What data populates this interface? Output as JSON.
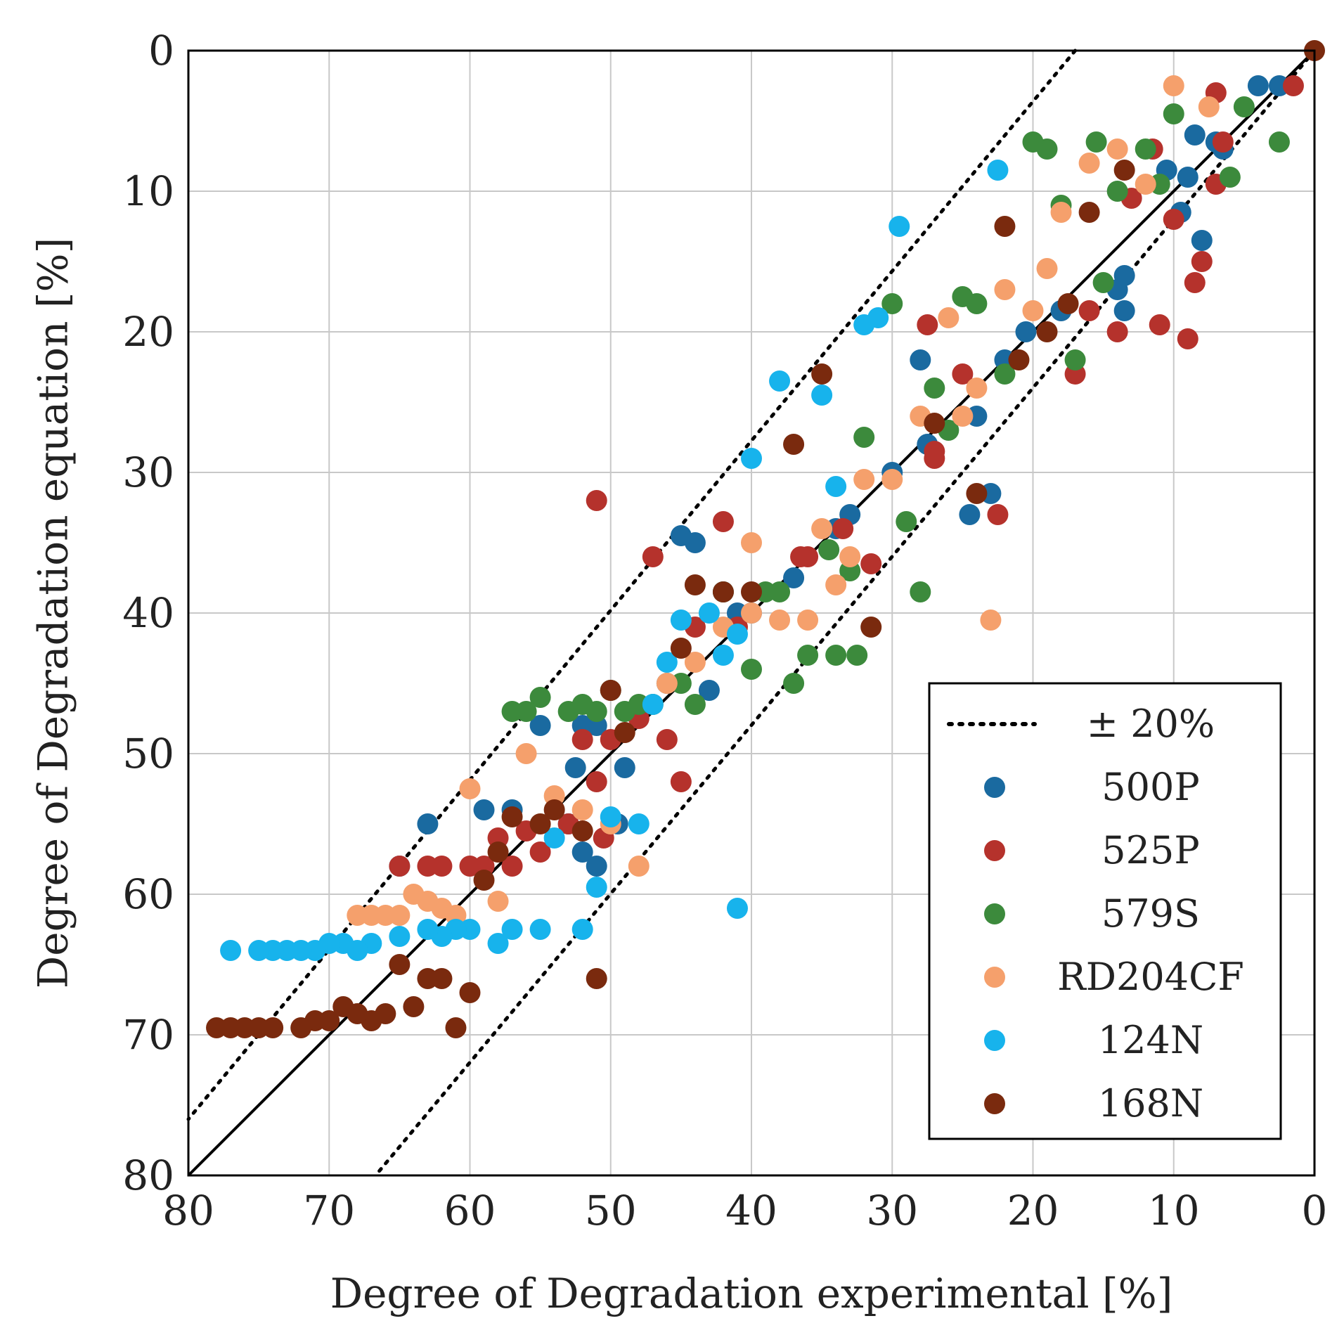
{
  "chart_data": {
    "type": "scatter",
    "title": "",
    "xlabel": "Degree of Degradation experimental [%]",
    "ylabel": "Degree of Degradation equation [%]",
    "xlim": [
      80,
      0
    ],
    "ylim": [
      80,
      0
    ],
    "x_reversed": true,
    "y_reversed": true,
    "xticks": [
      80,
      70,
      60,
      50,
      40,
      30,
      20,
      10,
      0
    ],
    "yticks": [
      0,
      10,
      20,
      30,
      40,
      50,
      60,
      70,
      80
    ],
    "grid": true,
    "legend_position": "bottom-right",
    "reference_lines": [
      {
        "name": "identity",
        "style": "solid",
        "color": "#000000",
        "points": [
          [
            0,
            0
          ],
          [
            80,
            80
          ]
        ]
      },
      {
        "name": "± 20%",
        "style": "dotted",
        "color": "#000000",
        "points": [
          [
            0,
            0
          ],
          [
            66.7,
            80
          ]
        ],
        "label": "± 20%"
      },
      {
        "name": "± 20% upper",
        "style": "dotted",
        "color": "#000000",
        "points": [
          [
            17,
            0
          ],
          [
            80,
            76
          ]
        ]
      }
    ],
    "legend": [
      {
        "label": "± 20%",
        "kind": "dotted-line"
      },
      {
        "label": "500P",
        "kind": "marker",
        "color": "#1a6aa0"
      },
      {
        "label": "525P",
        "kind": "marker",
        "color": "#b5322c"
      },
      {
        "label": "579S",
        "kind": "marker",
        "color": "#3c8a3c"
      },
      {
        "label": "RD204CF",
        "kind": "marker",
        "color": "#f5a06c"
      },
      {
        "label": "124N",
        "kind": "marker",
        "color": "#17b3ec"
      },
      {
        "label": "168N",
        "kind": "marker",
        "color": "#7a2a0e"
      }
    ],
    "series": [
      {
        "name": "500P",
        "color": "#1a6aa0",
        "x": [
          4,
          2.5,
          8.5,
          9,
          10.5,
          9.5,
          8,
          7,
          6.5,
          13.5,
          14,
          13.5,
          18,
          20.5,
          22,
          24,
          24.5,
          23,
          27.5,
          28,
          30,
          33,
          34,
          37,
          40,
          42,
          43,
          41,
          44,
          45,
          46,
          49,
          49.5,
          51,
          52,
          52.5,
          53,
          52,
          51,
          55,
          57,
          59,
          63,
          65
        ],
        "y": [
          2.5,
          2.5,
          6,
          9,
          8.5,
          11.5,
          13.5,
          6.5,
          7,
          16,
          17,
          18.5,
          18.5,
          20,
          22,
          26,
          33,
          31.5,
          28,
          22,
          30,
          33,
          34,
          37.5,
          40,
          38.5,
          45.5,
          40,
          35,
          34.5,
          45,
          51,
          55,
          48,
          48,
          51,
          55,
          57,
          58,
          48,
          54,
          54,
          55,
          58
        ]
      },
      {
        "name": "525P",
        "color": "#b5322c",
        "x": [
          1.5,
          7,
          6.5,
          7,
          8,
          10,
          11,
          8.5,
          9,
          11.5,
          13,
          14,
          16,
          17,
          22.5,
          25,
          27,
          27,
          27.5,
          31.5,
          33.5,
          36,
          36.5,
          41,
          42,
          44,
          45,
          46,
          47,
          48,
          50,
          50.5,
          51,
          51,
          52,
          53,
          55,
          56,
          57,
          58,
          59,
          60,
          62,
          63,
          65
        ],
        "y": [
          2.5,
          3,
          6.5,
          9.5,
          15,
          12,
          19.5,
          16.5,
          20.5,
          7,
          10.5,
          20,
          18.5,
          23,
          33,
          23,
          28.5,
          29,
          19.5,
          36.5,
          34,
          36,
          36,
          41,
          33.5,
          41,
          52,
          49,
          36,
          47.5,
          49,
          56,
          52,
          32,
          49,
          55,
          57,
          55.5,
          58,
          56,
          58,
          58,
          58,
          58,
          58
        ]
      },
      {
        "name": "579S",
        "color": "#3c8a3c",
        "x": [
          2.5,
          5,
          6,
          10,
          11,
          12,
          14,
          15,
          15.5,
          17,
          18,
          19,
          20,
          22,
          24,
          25,
          26,
          27,
          28,
          29,
          30,
          32,
          32.5,
          33,
          34,
          34.5,
          36,
          37,
          38,
          39,
          40,
          42,
          44,
          45,
          47,
          48,
          49,
          50,
          51,
          52,
          53,
          55,
          56,
          57
        ],
        "y": [
          6.5,
          4,
          9,
          4.5,
          9.5,
          7,
          10,
          16.5,
          6.5,
          22,
          11,
          7,
          6.5,
          23,
          18,
          17.5,
          27,
          24,
          38.5,
          33.5,
          18,
          27.5,
          43,
          37,
          43,
          35.5,
          43,
          45,
          38.5,
          38.5,
          44,
          38.5,
          46.5,
          45,
          46.5,
          46.5,
          47,
          45.5,
          47,
          46.5,
          47,
          46,
          47,
          47
        ]
      },
      {
        "name": "RD204CF",
        "color": "#f5a06c",
        "x": [
          7.5,
          10,
          12,
          14,
          16,
          18,
          19,
          20,
          22,
          24,
          26,
          28,
          30,
          32,
          33,
          34,
          36,
          38,
          40,
          42,
          44,
          46,
          48,
          50,
          52,
          54,
          56,
          58,
          60,
          61,
          62,
          63,
          64,
          65,
          66,
          67,
          68,
          23,
          25,
          40,
          35
        ],
        "y": [
          4,
          2.5,
          9.5,
          7,
          8,
          11.5,
          15.5,
          18.5,
          17,
          24,
          19,
          26,
          30.5,
          30.5,
          36,
          38,
          40.5,
          40.5,
          35,
          41,
          43.5,
          45,
          58,
          55,
          54,
          53,
          50,
          60.5,
          52.5,
          61.5,
          61,
          60.5,
          60,
          61.5,
          61.5,
          61.5,
          61.5,
          40.5,
          26,
          40,
          34
        ]
      },
      {
        "name": "124N",
        "color": "#17b3ec",
        "x": [
          22.5,
          29.5,
          31,
          32,
          34,
          35,
          38,
          40,
          41,
          42,
          43,
          45,
          46,
          47,
          48,
          50,
          51,
          52,
          54,
          55,
          57,
          58,
          60,
          61,
          62,
          63,
          65,
          67,
          68,
          69,
          70,
          71,
          72,
          73,
          74,
          75,
          77,
          41
        ],
        "y": [
          8.5,
          12.5,
          19,
          19.5,
          31,
          24.5,
          23.5,
          29,
          41.5,
          43,
          40,
          40.5,
          43.5,
          46.5,
          55,
          54.5,
          59.5,
          62.5,
          56,
          62.5,
          62.5,
          63.5,
          62.5,
          62.5,
          63,
          62.5,
          63,
          63.5,
          64,
          63.5,
          63.5,
          64,
          64,
          64,
          64,
          64,
          64,
          61
        ]
      },
      {
        "name": "168N",
        "color": "#7a2a0e",
        "x": [
          0,
          13.5,
          16,
          17.5,
          19,
          21,
          22,
          24,
          27,
          31.5,
          35,
          37,
          40,
          42,
          44,
          45,
          49,
          50,
          52,
          54,
          55,
          57,
          58,
          59,
          60,
          61,
          62,
          63,
          64,
          65,
          66,
          67,
          68,
          69,
          70,
          71,
          72,
          74,
          75,
          76,
          77,
          78,
          51
        ],
        "y": [
          0,
          8.5,
          11.5,
          18,
          20,
          22,
          12.5,
          31.5,
          26.5,
          41,
          23,
          28,
          38.5,
          38.5,
          38,
          42.5,
          48.5,
          45.5,
          55.5,
          54,
          55,
          54.5,
          57,
          59,
          67,
          69.5,
          66,
          66,
          68,
          65,
          68.5,
          69,
          68.5,
          68,
          69,
          69,
          69.5,
          69.5,
          69.5,
          69.5,
          69.5,
          69.5,
          66
        ]
      }
    ]
  }
}
